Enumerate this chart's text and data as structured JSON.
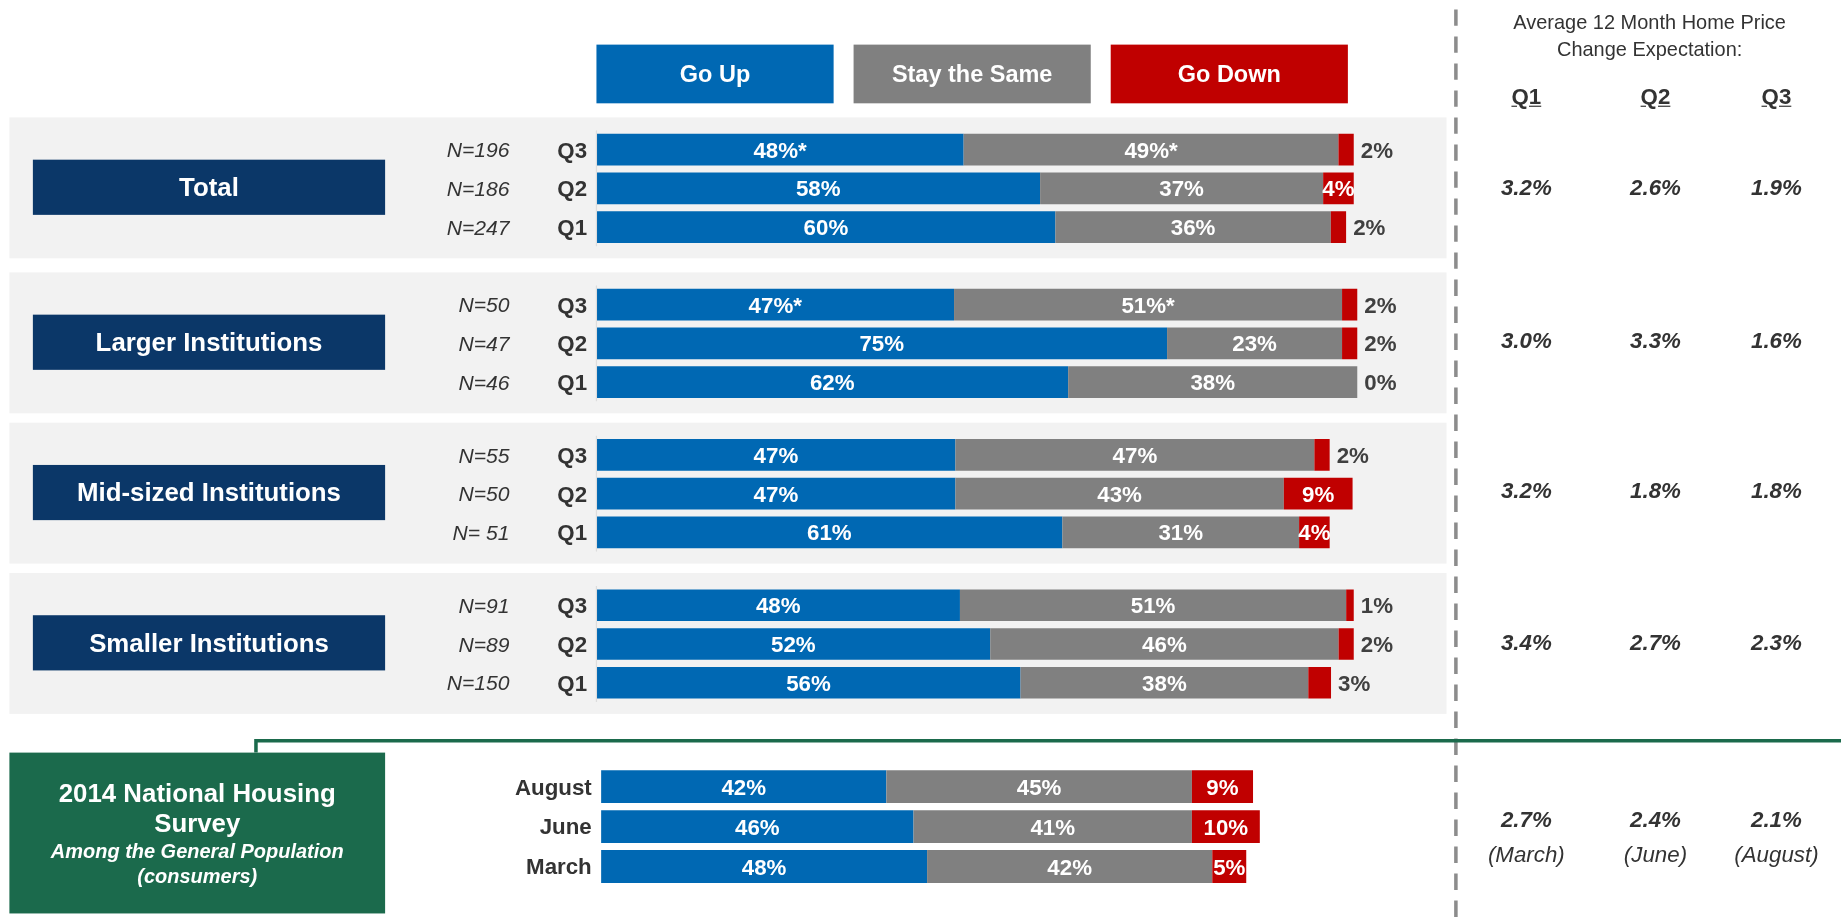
{
  "chart_data": [
    {
      "type": "bar",
      "orientation": "horizontal",
      "stacked": true,
      "legend": "top",
      "ylabel": "Total",
      "categories": [
        "Q3",
        "Q2",
        "Q1"
      ],
      "annotations": [
        "N=196",
        "N=186",
        "N=247"
      ],
      "series": [
        {
          "name": "Go Up",
          "color": "#0068b3",
          "values": [
            48,
            58,
            60
          ],
          "value_labels": [
            "48%*",
            "58%",
            "60%"
          ]
        },
        {
          "name": "Stay the Same",
          "color": "#808080",
          "values": [
            49,
            37,
            36
          ],
          "value_labels": [
            "49%*",
            "37%",
            "36%"
          ]
        },
        {
          "name": "Go Down",
          "color": "#c00000",
          "values": [
            2,
            4,
            2
          ],
          "value_labels": [
            "2%",
            "4%",
            "2%"
          ]
        }
      ]
    },
    {
      "type": "bar",
      "orientation": "horizontal",
      "stacked": true,
      "ylabel": "Larger Institutions",
      "categories": [
        "Q3",
        "Q2",
        "Q1"
      ],
      "annotations": [
        "N=50",
        "N=47",
        "N=46"
      ],
      "series": [
        {
          "color": "#0068b3",
          "values": [
            47,
            75,
            62
          ],
          "value_labels": [
            "47%*",
            "75%",
            "62%"
          ]
        },
        {
          "color": "#808080",
          "values": [
            51,
            23,
            38
          ],
          "value_labels": [
            "51%*",
            "23%",
            "38%"
          ]
        },
        {
          "color": "#c00000",
          "values": [
            2,
            2,
            0
          ],
          "value_labels": [
            "2%",
            "2%",
            "0%"
          ]
        }
      ]
    },
    {
      "type": "bar",
      "orientation": "horizontal",
      "stacked": true,
      "ylabel": "Mid-sized Institutions",
      "categories": [
        "Q3",
        "Q2",
        "Q1"
      ],
      "annotations": [
        "N=55",
        "N=50",
        "N= 51"
      ],
      "series": [
        {
          "color": "#0068b3",
          "values": [
            47,
            47,
            61
          ],
          "value_labels": [
            "47%",
            "47%",
            "61%"
          ]
        },
        {
          "color": "#808080",
          "values": [
            47,
            43,
            31
          ],
          "value_labels": [
            "47%",
            "43%",
            "31%"
          ]
        },
        {
          "color": "#c00000",
          "values": [
            2,
            9,
            4
          ],
          "value_labels": [
            "2%",
            "9%",
            "4%"
          ]
        }
      ]
    },
    {
      "type": "bar",
      "orientation": "horizontal",
      "stacked": true,
      "ylabel": "Smaller Institutions",
      "categories": [
        "Q3",
        "Q2",
        "Q1"
      ],
      "annotations": [
        "N=91",
        "N=89",
        "N=150"
      ],
      "series": [
        {
          "color": "#0068b3",
          "values": [
            48,
            52,
            56
          ],
          "value_labels": [
            "48%",
            "52%",
            "56%"
          ]
        },
        {
          "color": "#808080",
          "values": [
            51,
            46,
            38
          ],
          "value_labels": [
            "51%",
            "46%",
            "38%"
          ]
        },
        {
          "color": "#c00000",
          "values": [
            1,
            2,
            3
          ],
          "value_labels": [
            "1%",
            "2%",
            "3%"
          ]
        }
      ]
    },
    {
      "type": "bar",
      "orientation": "horizontal",
      "stacked": true,
      "ylabel": "2014 National Housing Survey\nAmong the General Population (consumers)",
      "categories": [
        "August",
        "June",
        "March"
      ],
      "series": [
        {
          "color": "#0068b3",
          "values": [
            42,
            46,
            48
          ],
          "value_labels": [
            "42%",
            "46%",
            "48%"
          ]
        },
        {
          "color": "#808080",
          "values": [
            45,
            41,
            42
          ],
          "value_labels": [
            "45%",
            "41%",
            "42%"
          ]
        },
        {
          "color": "#c00000",
          "values": [
            9,
            10,
            5
          ],
          "value_labels": [
            "9%",
            "10%",
            "5%"
          ]
        }
      ]
    },
    {
      "type": "other",
      "title": "Average 12 Month Home Price Change Expectation:",
      "categories": [
        "Q1",
        "Q2",
        "Q3"
      ],
      "annotations": [
        "3.2%",
        "2.6%",
        "1.9%",
        "3.0%",
        "3.3%",
        "1.6%",
        "3.2%",
        "1.8%",
        "1.8%",
        "3.4%",
        "2.7%",
        "2.3%",
        "2.7%",
        "2.4%",
        "2.1%",
        "(March)",
        "(June)",
        "(August)"
      ]
    }
  ]
}
